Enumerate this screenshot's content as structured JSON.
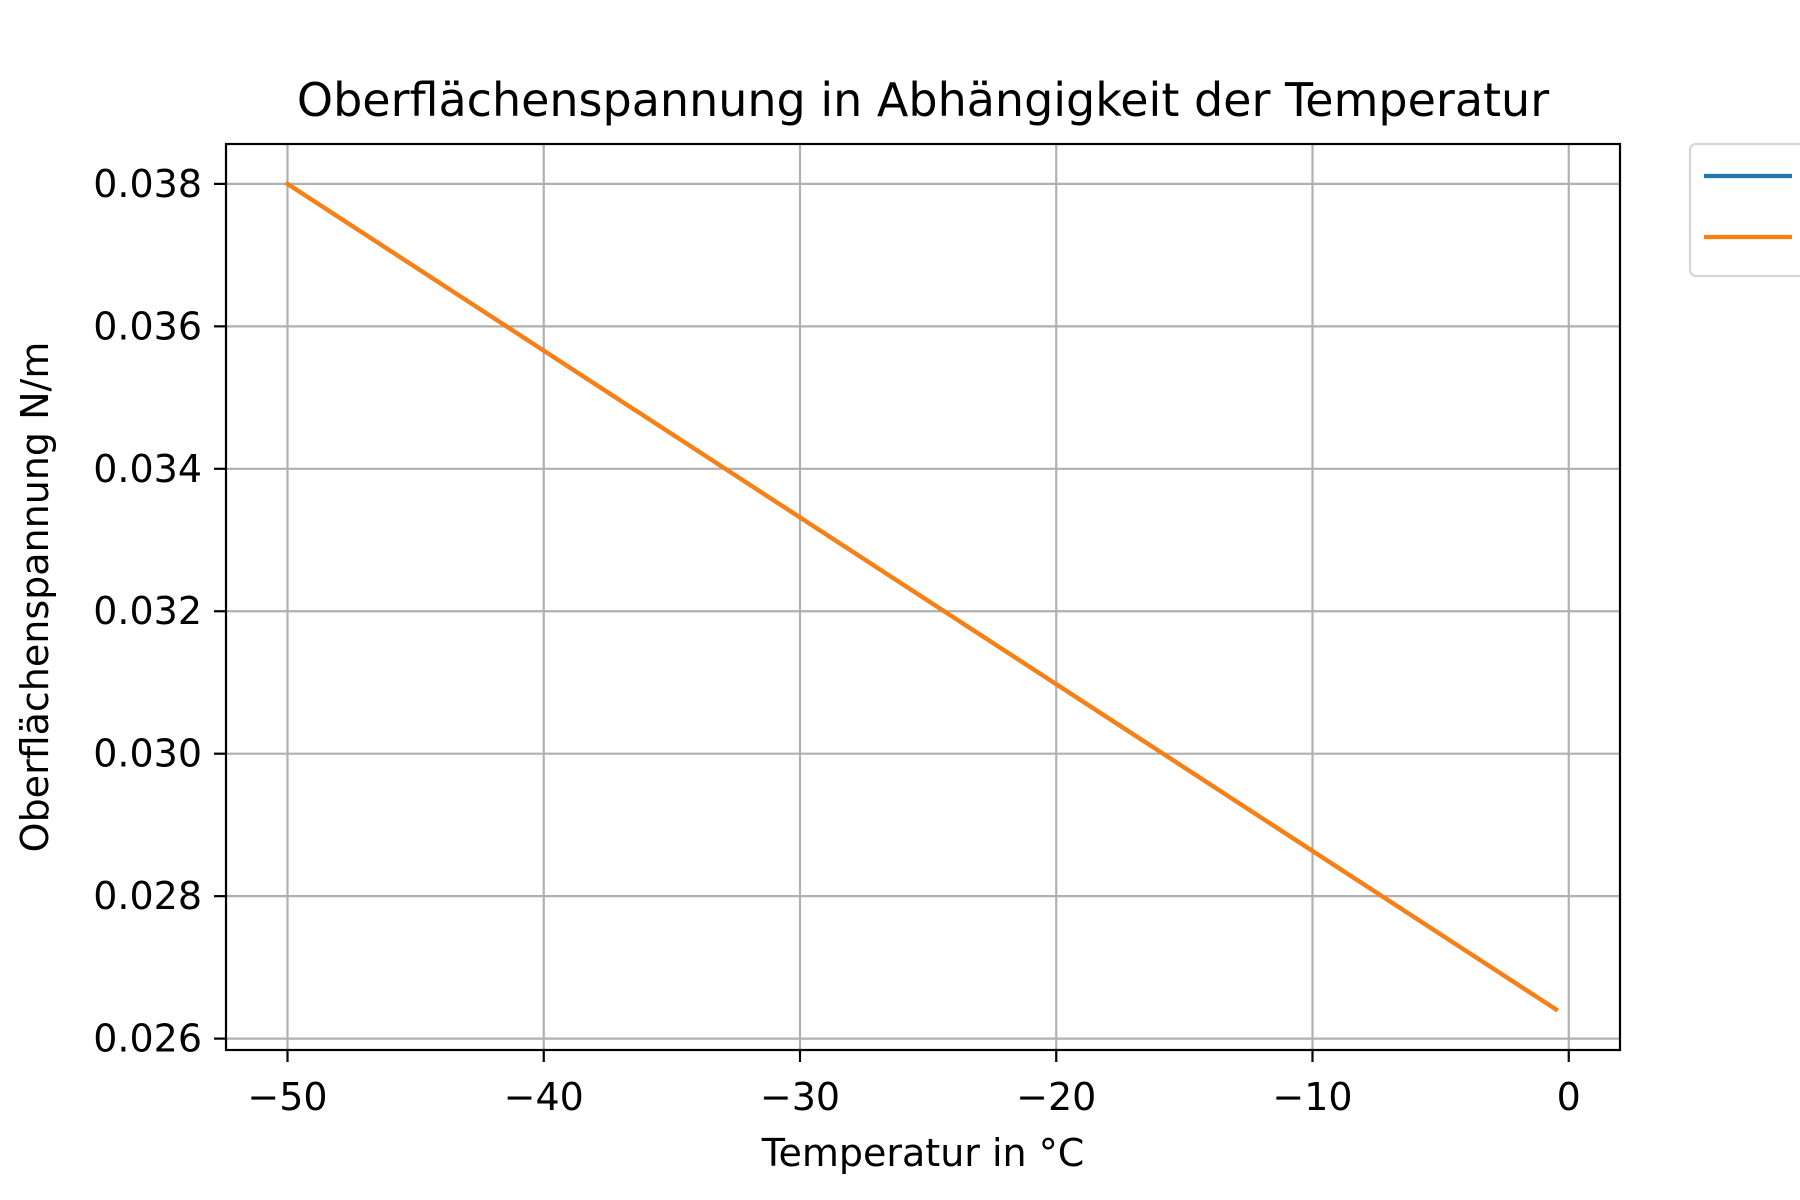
{
  "chart_data": {
    "type": "line",
    "title": "Oberflächenspannung in Abhängigkeit der Temperatur",
    "xlabel": "Temperatur in °C",
    "ylabel": "Oberflächenspannung N/m",
    "xlim": [
      -52.4,
      2.0
    ],
    "ylim": [
      0.02584,
      0.03856
    ],
    "x_ticks": [
      -50,
      -40,
      -30,
      -20,
      -10,
      0
    ],
    "x_tick_labels": [
      "−50",
      "−40",
      "−30",
      "−20",
      "−10",
      "0"
    ],
    "y_ticks": [
      0.026,
      0.028,
      0.03,
      0.032,
      0.034,
      0.036,
      0.038
    ],
    "y_tick_labels": [
      "0.026",
      "0.028",
      "0.030",
      "0.032",
      "0.034",
      "0.036",
      "0.038"
    ],
    "grid": true,
    "legend": {
      "placement": "outside-top-right"
    },
    "series": [
      {
        "color": "#1f77b4",
        "x": [
          -50,
          -0.5
        ],
        "y": [
          0.038,
          0.02641
        ]
      },
      {
        "color": "#ff7f0e",
        "x": [
          -50,
          -0.5
        ],
        "y": [
          0.038,
          0.02641
        ]
      }
    ]
  }
}
